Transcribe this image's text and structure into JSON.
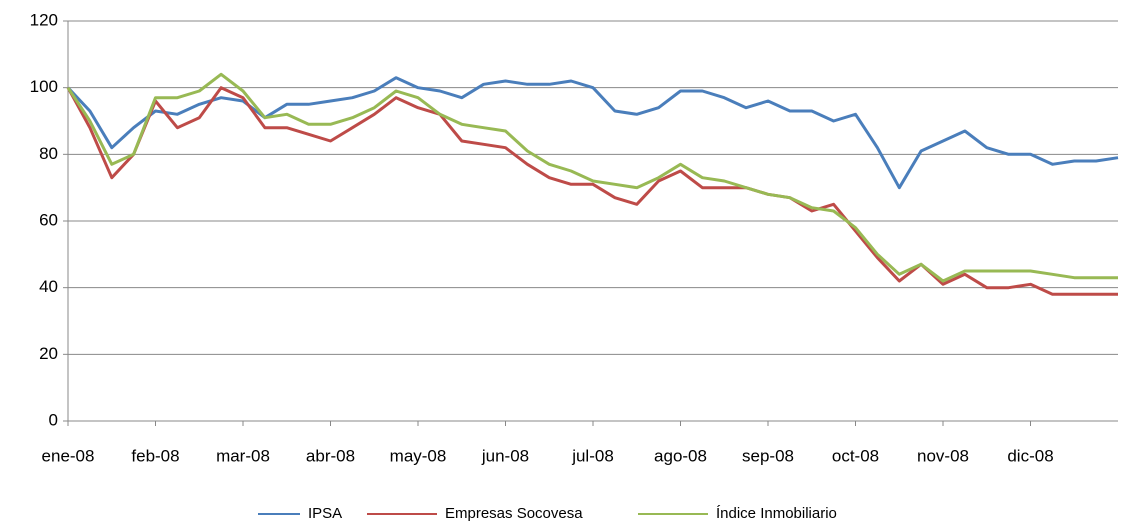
{
  "chart_data": {
    "type": "line",
    "categories": [
      "ene-08",
      null,
      null,
      null,
      "feb-08",
      null,
      null,
      null,
      "mar-08",
      null,
      null,
      null,
      "abr-08",
      null,
      null,
      null,
      "may-08",
      null,
      null,
      null,
      "jun-08",
      null,
      null,
      null,
      "jul-08",
      null,
      null,
      null,
      "ago-08",
      null,
      null,
      null,
      "sep-08",
      null,
      null,
      null,
      "oct-08",
      null,
      null,
      null,
      "nov-08",
      null,
      null,
      null,
      "dic-08",
      null,
      null,
      null,
      null
    ],
    "series": [
      {
        "name": "IPSA",
        "color": "#4a7ebb",
        "values": [
          100,
          93,
          82,
          88,
          93,
          92,
          95,
          97,
          96,
          91,
          95,
          95,
          96,
          97,
          99,
          103,
          100,
          99,
          97,
          101,
          102,
          101,
          101,
          102,
          100,
          93,
          92,
          94,
          99,
          99,
          97,
          94,
          96,
          93,
          93,
          90,
          92,
          82,
          70,
          81,
          84,
          87,
          82,
          80,
          80,
          77,
          78,
          78,
          79
        ]
      },
      {
        "name": "Empresas Socovesa",
        "color": "#be4b48",
        "values": [
          100,
          88,
          73,
          80,
          96,
          88,
          91,
          100,
          97,
          88,
          88,
          86,
          84,
          88,
          92,
          97,
          94,
          92,
          84,
          83,
          82,
          77,
          73,
          71,
          71,
          67,
          65,
          72,
          75,
          70,
          70,
          70,
          68,
          67,
          63,
          65,
          57,
          49,
          42,
          47,
          41,
          44,
          40,
          40,
          41,
          38,
          38,
          38,
          38
        ]
      },
      {
        "name": "Índice Inmobiliario",
        "color": "#98b954",
        "values": [
          100,
          90,
          77,
          80,
          97,
          97,
          99,
          104,
          99,
          91,
          92,
          89,
          89,
          91,
          94,
          99,
          97,
          92,
          89,
          88,
          87,
          81,
          77,
          75,
          72,
          71,
          70,
          73,
          77,
          73,
          72,
          70,
          68,
          67,
          64,
          63,
          58,
          50,
          44,
          47,
          42,
          45,
          45,
          45,
          45,
          44,
          43,
          43,
          43
        ]
      }
    ],
    "ylim": [
      0,
      120
    ],
    "yticks": [
      0,
      20,
      40,
      60,
      80,
      100,
      120
    ],
    "grid": true,
    "legend": "bottom"
  }
}
